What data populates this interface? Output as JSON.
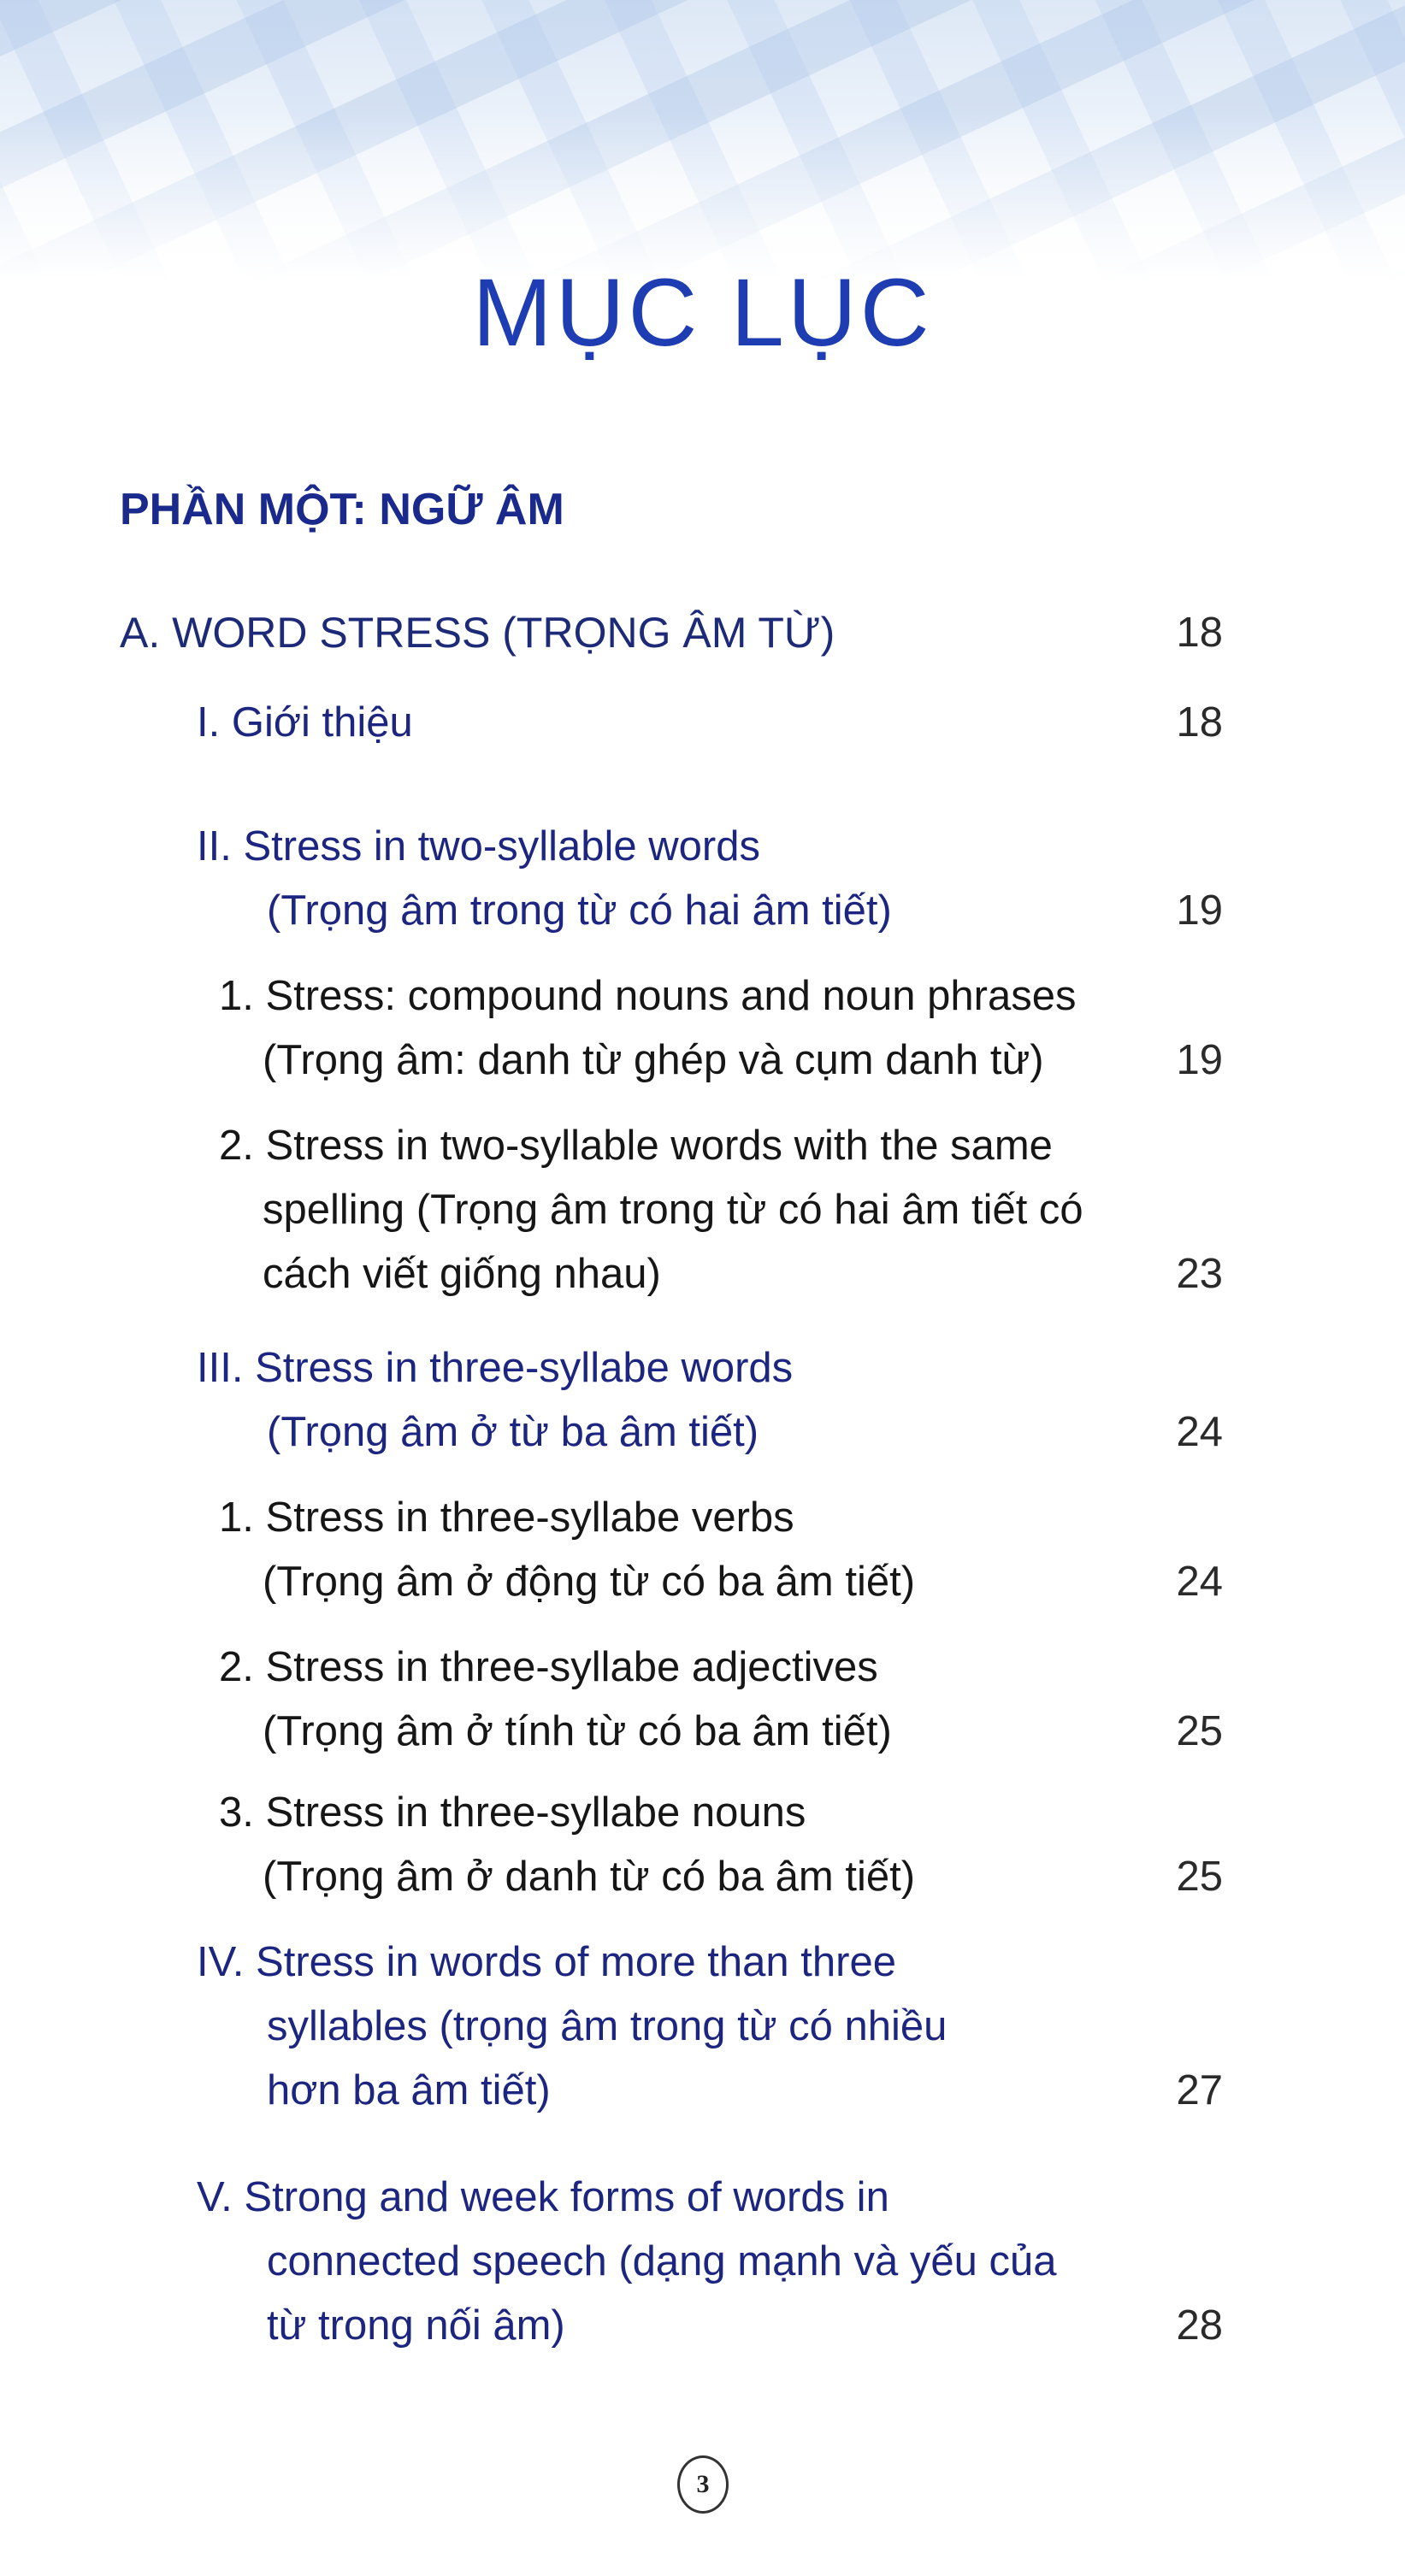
{
  "title": "MỤC LỤC",
  "part": "PHẦN MỘT: NGỮ ÂM",
  "entries": [
    {
      "style": "section",
      "lines": [
        "A. WORD STRESS (TRỌNG ÂM TỪ)"
      ],
      "page": "18"
    },
    {
      "style": "blue",
      "lines": [
        "I. Giới thiệu"
      ],
      "page": "18"
    },
    {
      "style": "blue",
      "lines": [
        "II. Stress in two-syllable words",
        "(Trọng âm trong từ có hai âm tiết)"
      ],
      "page": "19"
    },
    {
      "style": "black",
      "lines": [
        "1. Stress: compound nouns and noun phrases",
        "(Trọng âm: danh từ ghép và cụm danh từ)"
      ],
      "page": "19"
    },
    {
      "style": "black",
      "lines": [
        "2. Stress in two-syllable words with the same",
        "spelling (Trọng âm trong từ có hai âm tiết có",
        "cách viết giống nhau)"
      ],
      "page": "23"
    },
    {
      "style": "blue",
      "lines": [
        "III. Stress in three-syllabe words",
        "(Trọng âm ở từ ba âm tiết)"
      ],
      "page": "24"
    },
    {
      "style": "black",
      "lines": [
        "1. Stress in three-syllabe verbs",
        "(Trọng âm ở động từ có ba âm tiết)"
      ],
      "page": "24"
    },
    {
      "style": "black",
      "lines": [
        "2. Stress in three-syllabe adjectives",
        "(Trọng âm ở tính từ có ba âm tiết)"
      ],
      "page": "25"
    },
    {
      "style": "black",
      "lines": [
        "3. Stress in three-syllabe nouns",
        "(Trọng âm ở danh từ có ba âm tiết)"
      ],
      "page": "25"
    },
    {
      "style": "blue",
      "lines": [
        "IV. Stress in words of more than three",
        "syllables (trọng âm trong từ có nhiều",
        "hơn ba âm tiết)"
      ],
      "page": "27"
    },
    {
      "style": "blue",
      "lines": [
        "V. Strong and week forms of words in",
        "connected speech (dạng mạnh và yếu của",
        "từ trong nối âm)"
      ],
      "page": "28"
    }
  ],
  "page_number": "3",
  "colors": {
    "title": "#1e3db3",
    "roman_entries": "#1c2680",
    "numbered_entries": "#161616"
  }
}
